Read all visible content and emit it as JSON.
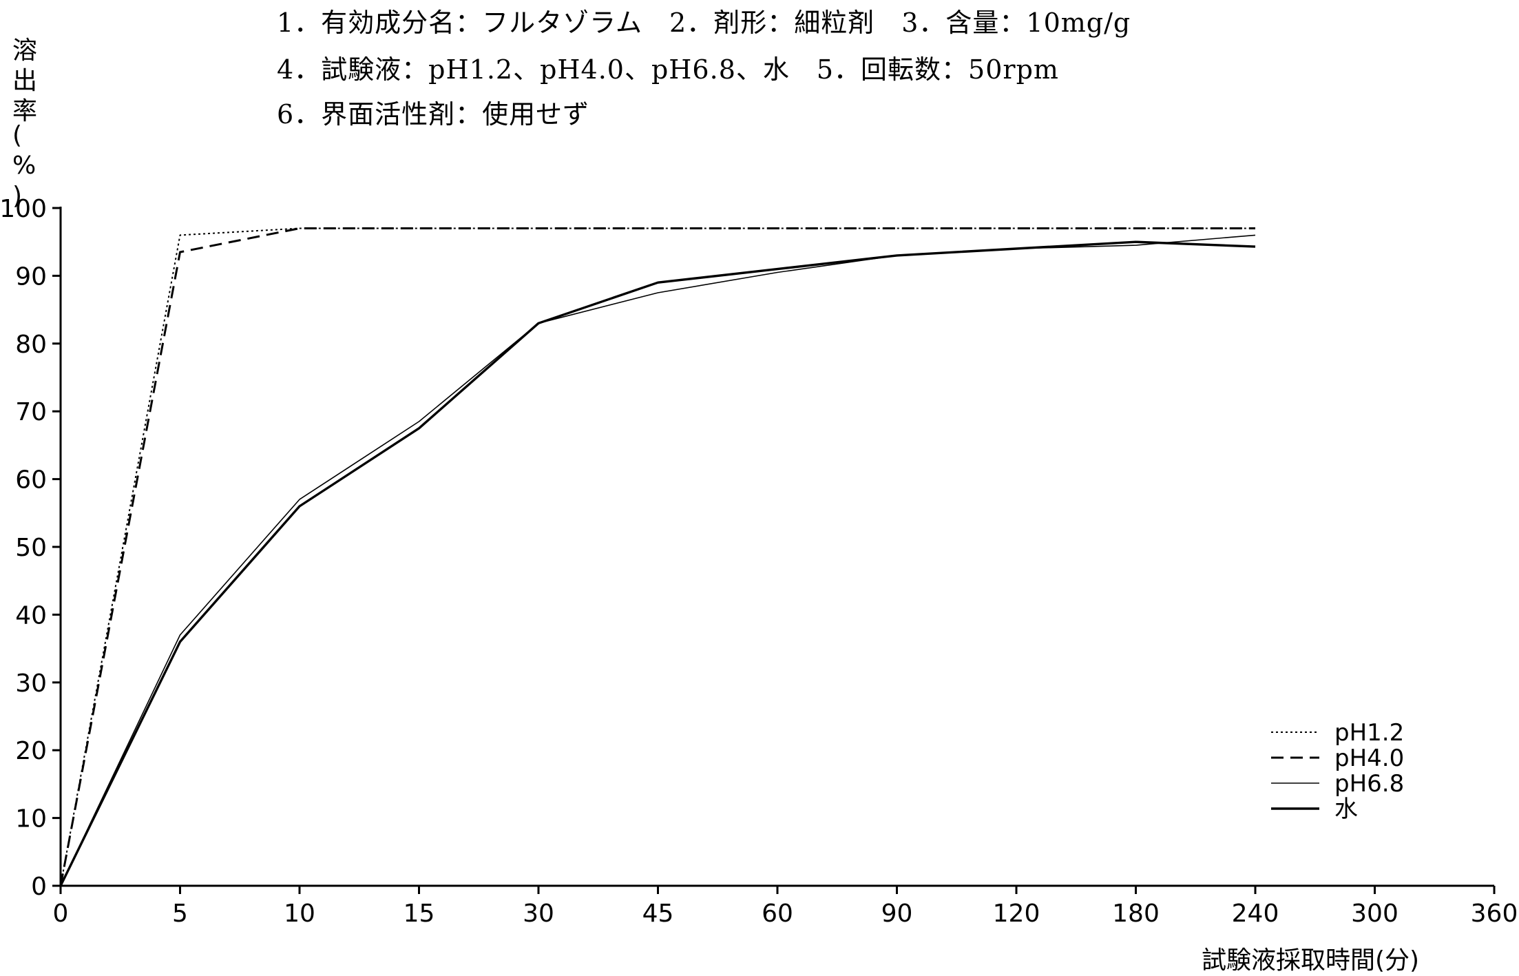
{
  "header": {
    "line1": "1．有効成分名：フルタゾラム　2．剤形：細粒剤　3．含量：10mg/g",
    "line2": "4．試験液：pH1.2、pH4.0、pH6.8、水　5．回転数：50rpm",
    "line3": "6．界面活性剤：使用せず"
  },
  "chart_data": {
    "type": "line",
    "ylabel": "溶出率(%)",
    "xlabel": "試験液採取時間(分)",
    "categories": [
      "0",
      "5",
      "10",
      "15",
      "30",
      "45",
      "60",
      "90",
      "120",
      "180",
      "240",
      "300",
      "360"
    ],
    "ylim": [
      0,
      100
    ],
    "yticks": [
      "0",
      "10",
      "20",
      "30",
      "40",
      "50",
      "60",
      "70",
      "80",
      "90",
      "100"
    ],
    "legend_position": "bottom-right",
    "grid": false,
    "series": [
      {
        "name": "pH1.2",
        "style": "dotted",
        "stroke_width": 2,
        "x": [
          "0",
          "5",
          "10",
          "15",
          "30",
          "45",
          "60",
          "90",
          "120",
          "180",
          "240"
        ],
        "values": [
          0,
          96,
          97,
          97,
          97,
          97,
          97,
          97,
          97,
          97,
          97
        ]
      },
      {
        "name": "pH4.0",
        "style": "dashed",
        "stroke_width": 3,
        "x": [
          "0",
          "5",
          "10",
          "15",
          "30",
          "45",
          "60",
          "90",
          "120",
          "180",
          "240"
        ],
        "values": [
          0,
          93.5,
          97,
          97,
          97,
          97,
          97,
          97,
          97,
          97,
          97
        ]
      },
      {
        "name": "pH6.8",
        "style": "solid",
        "stroke_width": 1.6,
        "x": [
          "0",
          "5",
          "10",
          "15",
          "30",
          "45",
          "60",
          "90",
          "120",
          "180",
          "240"
        ],
        "values": [
          0,
          37,
          57,
          68.5,
          83,
          87.5,
          90.5,
          93,
          94,
          94.5,
          96
        ]
      },
      {
        "name": "水",
        "style": "solid",
        "stroke_width": 3.4,
        "x": [
          "0",
          "5",
          "10",
          "15",
          "30",
          "45",
          "60",
          "90",
          "120",
          "180",
          "240"
        ],
        "values": [
          0,
          36,
          56,
          67.5,
          83,
          89,
          91,
          93,
          94,
          95,
          94.3
        ]
      }
    ]
  }
}
